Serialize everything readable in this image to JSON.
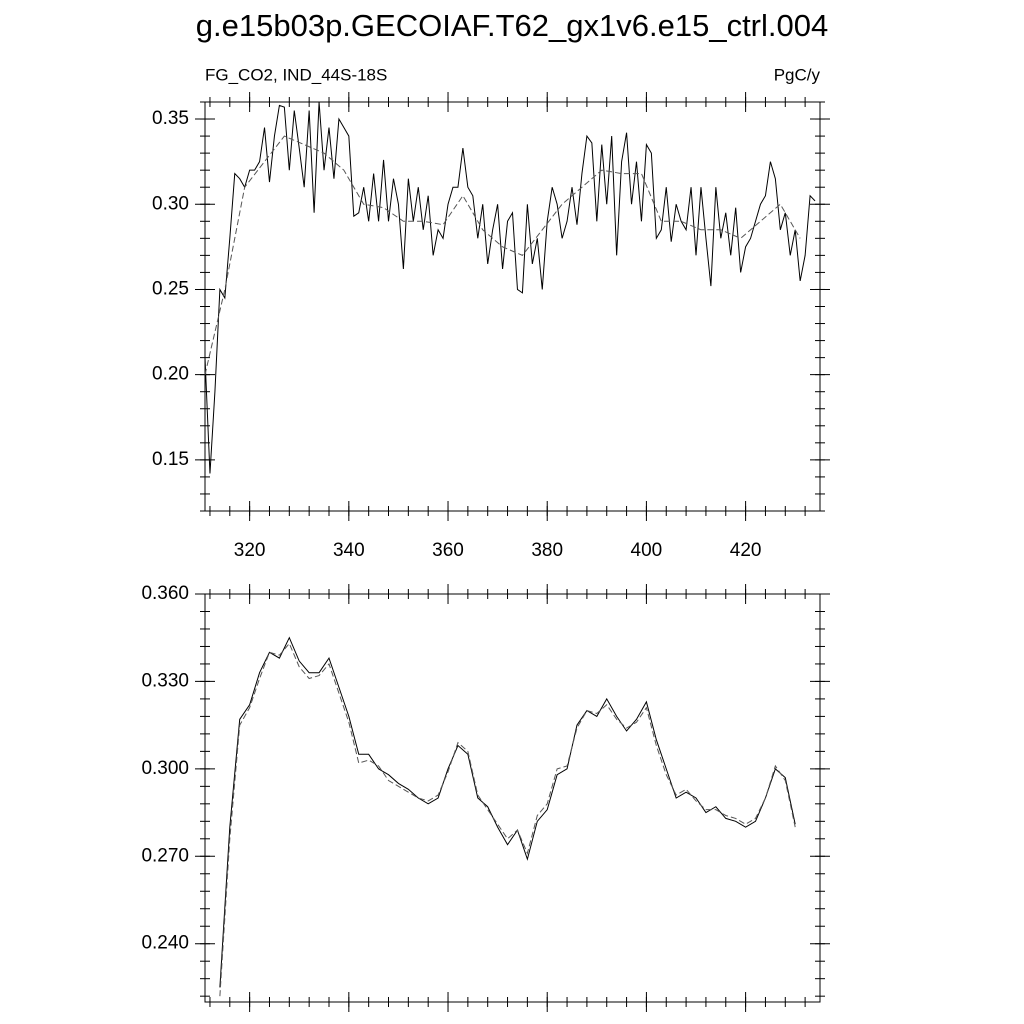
{
  "chart_data": [
    {
      "type": "line",
      "title": "g.e15b03p.GECOIAF.T62_gx1v6.e15_ctrl.004",
      "subtitle_left": "FG_CO2, IND_44S-18S",
      "subtitle_right": "PgC/y",
      "xlim": [
        311,
        435
      ],
      "xticks": [
        320,
        340,
        360,
        380,
        400,
        420
      ],
      "xtick_labels": true,
      "ylim": [
        0.12,
        0.36
      ],
      "yticks": [
        {
          "value": 0.15,
          "label": "0.15"
        },
        {
          "value": 0.2,
          "label": "0.20"
        },
        {
          "value": 0.25,
          "label": "0.25"
        },
        {
          "value": 0.3,
          "label": "0.30"
        },
        {
          "value": 0.35,
          "label": "0.35"
        }
      ],
      "series": [
        {
          "color": "#000000",
          "dash": false,
          "x": [
            311,
            312,
            313,
            314,
            315,
            316,
            317,
            318,
            319,
            320,
            321,
            322,
            323,
            324,
            325,
            326,
            327,
            328,
            329,
            330,
            331,
            332,
            333,
            334,
            335,
            336,
            337,
            338,
            339,
            340,
            341,
            342,
            343,
            344,
            345,
            346,
            347,
            348,
            349,
            350,
            351,
            352,
            353,
            354,
            355,
            356,
            357,
            358,
            359,
            360,
            361,
            362,
            363,
            364,
            365,
            366,
            367,
            368,
            369,
            370,
            371,
            372,
            373,
            374,
            375,
            376,
            377,
            378,
            379,
            380,
            381,
            382,
            383,
            384,
            385,
            386,
            387,
            388,
            389,
            390,
            391,
            392,
            393,
            394,
            395,
            396,
            397,
            398,
            399,
            400,
            401,
            402,
            403,
            404,
            405,
            406,
            407,
            408,
            409,
            410,
            411,
            412,
            413,
            414,
            415,
            416,
            417,
            418,
            419,
            420,
            421,
            422,
            423,
            424,
            425,
            426,
            427,
            428,
            429,
            430,
            431,
            432,
            433,
            434
          ],
          "values": [
            0.21,
            0.142,
            0.19,
            0.25,
            0.245,
            0.28,
            0.318,
            0.315,
            0.31,
            0.32,
            0.32,
            0.325,
            0.345,
            0.313,
            0.34,
            0.358,
            0.357,
            0.32,
            0.355,
            0.333,
            0.31,
            0.355,
            0.295,
            0.36,
            0.32,
            0.345,
            0.315,
            0.35,
            0.345,
            0.34,
            0.293,
            0.295,
            0.31,
            0.29,
            0.318,
            0.29,
            0.326,
            0.29,
            0.315,
            0.3,
            0.262,
            0.315,
            0.29,
            0.31,
            0.285,
            0.305,
            0.27,
            0.285,
            0.28,
            0.3,
            0.31,
            0.31,
            0.333,
            0.31,
            0.305,
            0.28,
            0.3,
            0.265,
            0.285,
            0.3,
            0.262,
            0.29,
            0.295,
            0.25,
            0.248,
            0.3,
            0.265,
            0.28,
            0.25,
            0.29,
            0.31,
            0.3,
            0.28,
            0.29,
            0.31,
            0.288,
            0.318,
            0.34,
            0.336,
            0.29,
            0.335,
            0.3,
            0.34,
            0.27,
            0.325,
            0.342,
            0.3,
            0.325,
            0.29,
            0.335,
            0.33,
            0.28,
            0.285,
            0.31,
            0.278,
            0.3,
            0.29,
            0.285,
            0.31,
            0.27,
            0.31,
            0.28,
            0.252,
            0.31,
            0.28,
            0.295,
            0.27,
            0.298,
            0.26,
            0.275,
            0.28,
            0.29,
            0.3,
            0.305,
            0.325,
            0.315,
            0.285,
            0.295,
            0.27,
            0.285,
            0.255,
            0.27,
            0.305,
            0.302
          ]
        },
        {
          "color": "#555555",
          "dash": true,
          "x": [
            311,
            315,
            319,
            323,
            327,
            331,
            335,
            339,
            343,
            347,
            351,
            355,
            359,
            363,
            367,
            371,
            375,
            379,
            383,
            387,
            391,
            395,
            399,
            403,
            407,
            411,
            415,
            419,
            423,
            427,
            431
          ],
          "values": [
            0.2,
            0.25,
            0.31,
            0.325,
            0.34,
            0.335,
            0.33,
            0.32,
            0.3,
            0.298,
            0.29,
            0.29,
            0.288,
            0.305,
            0.285,
            0.275,
            0.27,
            0.285,
            0.3,
            0.31,
            0.32,
            0.318,
            0.318,
            0.29,
            0.29,
            0.285,
            0.285,
            0.28,
            0.29,
            0.3,
            0.28
          ]
        }
      ]
    },
    {
      "type": "line",
      "xlim": [
        311,
        435
      ],
      "xticks": [
        320,
        340,
        360,
        380,
        400,
        420
      ],
      "xtick_labels": false,
      "ylim": [
        0.22,
        0.36
      ],
      "yticks": [
        {
          "value": 0.24,
          "label": "0.240"
        },
        {
          "value": 0.27,
          "label": "0.270"
        },
        {
          "value": 0.3,
          "label": "0.300"
        },
        {
          "value": 0.33,
          "label": "0.330"
        },
        {
          "value": 0.36,
          "label": "0.360"
        }
      ],
      "series": [
        {
          "color": "#000000",
          "dash": false,
          "x": [
            314,
            316,
            318,
            320,
            322,
            324,
            326,
            328,
            330,
            332,
            334,
            336,
            338,
            340,
            342,
            344,
            346,
            348,
            350,
            352,
            354,
            356,
            358,
            360,
            362,
            364,
            366,
            368,
            370,
            372,
            374,
            376,
            378,
            380,
            382,
            384,
            386,
            388,
            390,
            392,
            394,
            396,
            398,
            400,
            402,
            404,
            406,
            408,
            410,
            412,
            414,
            416,
            418,
            420,
            422,
            424,
            426,
            428,
            430
          ],
          "values": [
            0.225,
            0.28,
            0.317,
            0.322,
            0.333,
            0.34,
            0.338,
            0.345,
            0.337,
            0.333,
            0.333,
            0.338,
            0.328,
            0.318,
            0.305,
            0.305,
            0.3,
            0.298,
            0.295,
            0.293,
            0.29,
            0.288,
            0.29,
            0.3,
            0.308,
            0.305,
            0.29,
            0.287,
            0.28,
            0.274,
            0.279,
            0.269,
            0.282,
            0.286,
            0.298,
            0.3,
            0.315,
            0.32,
            0.318,
            0.324,
            0.318,
            0.313,
            0.317,
            0.323,
            0.31,
            0.3,
            0.29,
            0.292,
            0.29,
            0.285,
            0.287,
            0.283,
            0.282,
            0.28,
            0.282,
            0.29,
            0.3,
            0.297,
            0.281
          ]
        },
        {
          "color": "#555555",
          "dash": true,
          "x": [
            314,
            316,
            318,
            320,
            322,
            324,
            326,
            328,
            330,
            332,
            334,
            336,
            338,
            340,
            342,
            344,
            346,
            348,
            350,
            352,
            354,
            356,
            358,
            360,
            362,
            364,
            366,
            368,
            370,
            372,
            374,
            376,
            378,
            380,
            382,
            384,
            386,
            388,
            390,
            392,
            394,
            396,
            398,
            400,
            402,
            404,
            406,
            408,
            410,
            412,
            414,
            416,
            418,
            420,
            422,
            424,
            426,
            428,
            430
          ],
          "values": [
            0.222,
            0.276,
            0.315,
            0.321,
            0.331,
            0.34,
            0.339,
            0.343,
            0.335,
            0.331,
            0.332,
            0.336,
            0.326,
            0.316,
            0.302,
            0.303,
            0.301,
            0.296,
            0.294,
            0.292,
            0.29,
            0.289,
            0.291,
            0.299,
            0.309,
            0.306,
            0.291,
            0.286,
            0.281,
            0.276,
            0.279,
            0.271,
            0.284,
            0.288,
            0.3,
            0.301,
            0.314,
            0.32,
            0.319,
            0.322,
            0.317,
            0.314,
            0.316,
            0.321,
            0.308,
            0.298,
            0.291,
            0.293,
            0.289,
            0.286,
            0.286,
            0.284,
            0.283,
            0.281,
            0.283,
            0.29,
            0.301,
            0.296,
            0.28
          ]
        }
      ]
    }
  ]
}
